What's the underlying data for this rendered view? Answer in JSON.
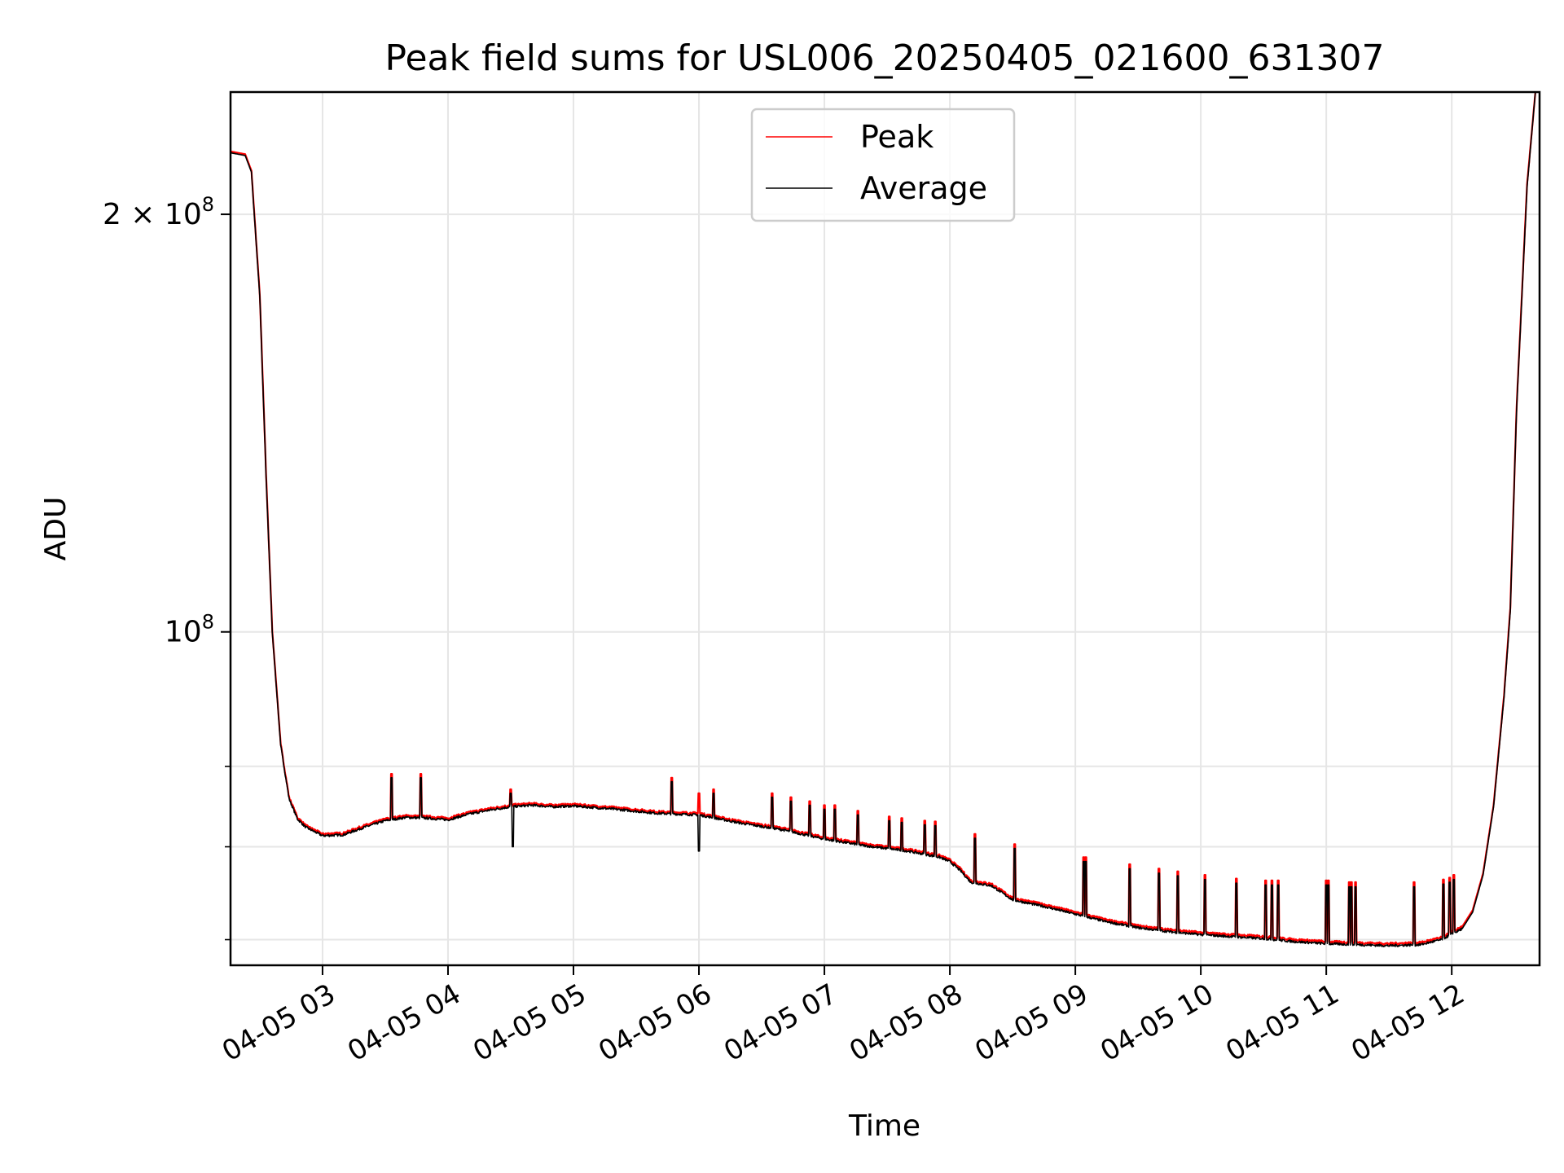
{
  "chart_data": {
    "type": "line",
    "title": "Peak field sums for USL006_20250405_021600_631307",
    "xlabel": "Time",
    "ylabel": "ADU",
    "y_scale": "log",
    "grid": true,
    "legend_position": "upper-center",
    "x_ticks": [
      "04-05 03",
      "04-05 04",
      "04-05 05",
      "04-05 06",
      "04-05 07",
      "04-05 08",
      "04-05 09",
      "04-05 10",
      "04-05 11",
      "04-05 12"
    ],
    "y_major_ticks": [
      {
        "value": 200000000,
        "mantissa": "2",
        "times": "×",
        "base": "10",
        "exp": "8"
      },
      {
        "value": 100000000,
        "mantissa": "",
        "times": "",
        "base": "10",
        "exp": "8"
      }
    ],
    "y_minor_ticks": [
      60000000,
      70000000,
      80000000
    ],
    "xlim": [
      "04-05 02:16",
      "04-05 12:42"
    ],
    "ylim": [
      57500000,
      245000000
    ],
    "series": [
      {
        "name": "Peak",
        "color": "#ff0000",
        "points": [
          [
            "02:16",
            222000000
          ],
          [
            "02:23",
            221000000
          ],
          [
            "02:26",
            215000000
          ],
          [
            "02:30",
            175000000
          ],
          [
            "02:33",
            130000000
          ],
          [
            "02:36",
            100000000
          ],
          [
            "02:40",
            83000000
          ],
          [
            "02:44",
            76000000
          ],
          [
            "02:48",
            73500000
          ],
          [
            "02:52",
            72500000
          ],
          [
            "03:00",
            71500000
          ],
          [
            "03:10",
            71600000
          ],
          [
            "03:20",
            72500000
          ],
          [
            "03:30",
            73300000
          ],
          [
            "03:40",
            73700000
          ],
          [
            "03:50",
            73600000
          ],
          [
            "04:00",
            73400000
          ],
          [
            "04:10",
            74100000
          ],
          [
            "04:20",
            74600000
          ],
          [
            "04:30",
            75000000
          ],
          [
            "04:40",
            75200000
          ],
          [
            "04:50",
            75000000
          ],
          [
            "05:00",
            75100000
          ],
          [
            "05:20",
            74700000
          ],
          [
            "05:40",
            74200000
          ],
          [
            "06:00",
            74000000
          ],
          [
            "06:20",
            73000000
          ],
          [
            "06:40",
            72200000
          ],
          [
            "07:00",
            71100000
          ],
          [
            "07:20",
            70300000
          ],
          [
            "07:40",
            69700000
          ],
          [
            "07:55",
            69000000
          ],
          [
            "08:00",
            68500000
          ],
          [
            "08:05",
            67500000
          ],
          [
            "08:10",
            66200000
          ],
          [
            "08:20",
            65800000
          ],
          [
            "08:30",
            64300000
          ],
          [
            "08:45",
            63600000
          ],
          [
            "09:00",
            62800000
          ],
          [
            "09:15",
            62000000
          ],
          [
            "09:30",
            61400000
          ],
          [
            "09:45",
            61000000
          ],
          [
            "10:00",
            60700000
          ],
          [
            "10:15",
            60500000
          ],
          [
            "10:30",
            60300000
          ],
          [
            "10:45",
            60000000
          ],
          [
            "11:00",
            59800000
          ],
          [
            "11:15",
            59700000
          ],
          [
            "11:30",
            59600000
          ],
          [
            "11:45",
            59700000
          ],
          [
            "11:55",
            60200000
          ],
          [
            "12:05",
            61300000
          ],
          [
            "12:10",
            63000000
          ],
          [
            "12:15",
            67000000
          ],
          [
            "12:20",
            75000000
          ],
          [
            "12:25",
            90000000
          ],
          [
            "12:28",
            104000000
          ],
          [
            "12:31",
            145000000
          ],
          [
            "12:36",
            210000000
          ],
          [
            "12:40",
            245000000
          ]
        ],
        "spikes": [
          [
            "03:33",
            79000000
          ],
          [
            "03:47",
            79000000
          ],
          [
            "04:30",
            77000000
          ],
          [
            "05:47",
            78500000
          ],
          [
            "06:00",
            76500000
          ],
          [
            "06:07",
            77000000
          ],
          [
            "06:35",
            76500000
          ],
          [
            "06:44",
            76000000
          ],
          [
            "06:53",
            75500000
          ],
          [
            "07:00",
            75000000
          ],
          [
            "07:05",
            75000000
          ],
          [
            "07:16",
            74300000
          ],
          [
            "07:31",
            73600000
          ],
          [
            "07:37",
            73400000
          ],
          [
            "07:48",
            73100000
          ],
          [
            "07:53",
            73000000
          ],
          [
            "08:12",
            71500000
          ],
          [
            "08:31",
            70300000
          ],
          [
            "09:04",
            68800000
          ],
          [
            "09:05",
            68800000
          ],
          [
            "09:26",
            68000000
          ],
          [
            "09:40",
            67500000
          ],
          [
            "09:49",
            67200000
          ],
          [
            "10:02",
            66800000
          ],
          [
            "10:17",
            66400000
          ],
          [
            "10:31",
            66200000
          ],
          [
            "10:34",
            66200000
          ],
          [
            "10:37",
            66200000
          ],
          [
            "11:00",
            66200000
          ],
          [
            "11:01",
            66200000
          ],
          [
            "11:11",
            66000000
          ],
          [
            "11:12",
            66000000
          ],
          [
            "11:14",
            66000000
          ],
          [
            "11:42",
            66000000
          ],
          [
            "11:56",
            66300000
          ],
          [
            "11:59",
            66500000
          ],
          [
            "12:01",
            66800000
          ]
        ]
      },
      {
        "name": "Average",
        "color": "#000000",
        "points": [
          [
            "02:16",
            221500000
          ],
          [
            "02:23",
            220500000
          ],
          [
            "02:26",
            214500000
          ],
          [
            "02:30",
            174500000
          ],
          [
            "02:33",
            129500000
          ],
          [
            "02:36",
            99800000
          ],
          [
            "02:40",
            82800000
          ],
          [
            "02:44",
            75800000
          ],
          [
            "02:48",
            73300000
          ],
          [
            "02:52",
            72300000
          ],
          [
            "03:00",
            71300000
          ],
          [
            "03:10",
            71400000
          ],
          [
            "03:20",
            72300000
          ],
          [
            "03:30",
            73100000
          ],
          [
            "03:40",
            73500000
          ],
          [
            "03:50",
            73400000
          ],
          [
            "04:00",
            73200000
          ],
          [
            "04:10",
            73900000
          ],
          [
            "04:20",
            74400000
          ],
          [
            "04:30",
            74800000
          ],
          [
            "04:40",
            75000000
          ],
          [
            "04:50",
            74800000
          ],
          [
            "05:00",
            74900000
          ],
          [
            "05:20",
            74500000
          ],
          [
            "05:40",
            74000000
          ],
          [
            "06:00",
            73800000
          ],
          [
            "06:20",
            72800000
          ],
          [
            "06:40",
            72000000
          ],
          [
            "07:00",
            70900000
          ],
          [
            "07:20",
            70100000
          ],
          [
            "07:40",
            69500000
          ],
          [
            "07:55",
            68800000
          ],
          [
            "08:00",
            68300000
          ],
          [
            "08:05",
            67300000
          ],
          [
            "08:10",
            66000000
          ],
          [
            "08:20",
            65600000
          ],
          [
            "08:30",
            64100000
          ],
          [
            "08:45",
            63400000
          ],
          [
            "09:00",
            62600000
          ],
          [
            "09:15",
            61800000
          ],
          [
            "09:30",
            61200000
          ],
          [
            "09:45",
            60800000
          ],
          [
            "10:00",
            60500000
          ],
          [
            "10:15",
            60300000
          ],
          [
            "10:30",
            60100000
          ],
          [
            "10:45",
            59800000
          ],
          [
            "11:00",
            59600000
          ],
          [
            "11:15",
            59500000
          ],
          [
            "11:30",
            59400000
          ],
          [
            "11:45",
            59500000
          ],
          [
            "11:55",
            60000000
          ],
          [
            "12:05",
            61100000
          ],
          [
            "12:10",
            62800000
          ],
          [
            "12:15",
            66800000
          ],
          [
            "12:20",
            74800000
          ],
          [
            "12:25",
            89700000
          ],
          [
            "12:28",
            103500000
          ],
          [
            "12:31",
            144500000
          ],
          [
            "12:36",
            209000000
          ],
          [
            "12:40",
            245000000
          ]
        ],
        "spikes": [
          [
            "03:33",
            78500000
          ],
          [
            "03:47",
            78500000
          ],
          [
            "04:30",
            76500000
          ],
          [
            "05:47",
            78000000
          ],
          [
            "06:00",
            75500000
          ],
          [
            "06:07",
            76500000
          ],
          [
            "06:35",
            76000000
          ],
          [
            "06:44",
            75500000
          ],
          [
            "06:53",
            75000000
          ],
          [
            "07:00",
            74500000
          ],
          [
            "07:05",
            74500000
          ],
          [
            "07:16",
            73800000
          ],
          [
            "07:31",
            73100000
          ],
          [
            "07:37",
            72900000
          ],
          [
            "07:48",
            72600000
          ],
          [
            "07:53",
            72500000
          ],
          [
            "08:12",
            71000000
          ],
          [
            "08:31",
            69800000
          ],
          [
            "09:04",
            68300000
          ],
          [
            "09:05",
            68300000
          ],
          [
            "09:26",
            67500000
          ],
          [
            "09:40",
            67000000
          ],
          [
            "09:49",
            66700000
          ],
          [
            "10:02",
            66300000
          ],
          [
            "10:17",
            65900000
          ],
          [
            "10:31",
            65700000
          ],
          [
            "10:34",
            65700000
          ],
          [
            "10:37",
            65700000
          ],
          [
            "11:00",
            65700000
          ],
          [
            "11:01",
            65700000
          ],
          [
            "11:11",
            65500000
          ],
          [
            "11:12",
            65500000
          ],
          [
            "11:14",
            65500000
          ],
          [
            "11:42",
            65500000
          ],
          [
            "11:56",
            65800000
          ],
          [
            "11:59",
            66000000
          ],
          [
            "12:01",
            66300000
          ]
        ],
        "dips": [
          [
            "04:31",
            70000000
          ],
          [
            "06:00",
            69500000
          ]
        ]
      }
    ]
  }
}
